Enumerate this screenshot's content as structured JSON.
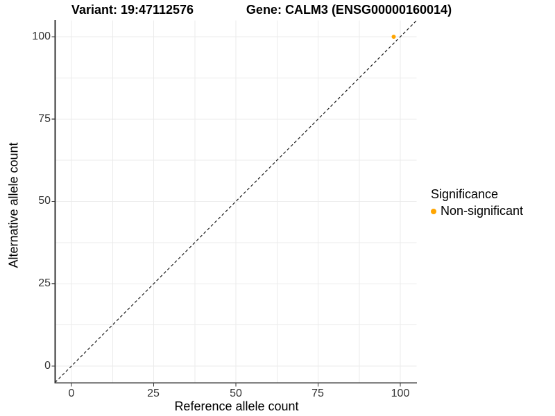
{
  "titles": {
    "variant": "Variant: 19:47112576",
    "gene": "Gene: CALM3 (ENSG00000160014)"
  },
  "chart_data": {
    "type": "scatter",
    "title_left": "Variant: 19:47112576",
    "title_right": "Gene: CALM3 (ENSG00000160014)",
    "xlabel": "Reference allele count",
    "ylabel": "Alternative allele count",
    "xlim": [
      -5,
      105
    ],
    "ylim": [
      -5,
      105
    ],
    "x_ticks": [
      "0",
      "25",
      "50",
      "75",
      "100"
    ],
    "y_ticks": [
      "100",
      "75",
      "50",
      "25",
      "0"
    ],
    "x_tick_values": [
      0,
      25,
      50,
      75,
      100
    ],
    "y_tick_values": [
      100,
      75,
      50,
      25,
      0
    ],
    "grid": "major and minor gridlines every 12.5 units, light gray, on white panel",
    "reference_line": {
      "kind": "identity y = x",
      "style": "dashed",
      "color": "#1a1a1a"
    },
    "series": [
      {
        "name": "Non-significant",
        "color": "#FFA500",
        "points": [
          {
            "x": 98,
            "y": 100
          }
        ]
      }
    ],
    "legend": {
      "title": "Significance",
      "position": "right",
      "entries": [
        {
          "label": "Non-significant",
          "color": "#FFA500"
        }
      ]
    }
  },
  "colors": {
    "background": "#ffffff",
    "gridline": "#ebebeb",
    "axis_line": "#333333",
    "tick_text": "#333333",
    "point_orange": "#FFA500"
  }
}
